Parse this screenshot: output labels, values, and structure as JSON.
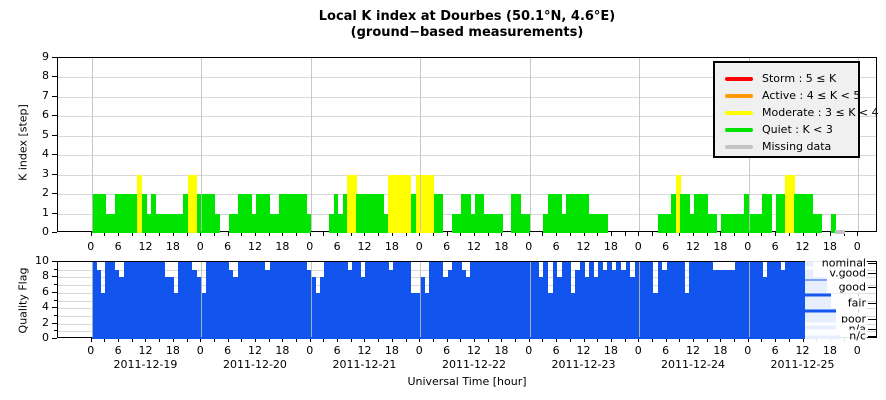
{
  "title": {
    "line1": "Local K index at Dourbes (50.1°N, 4.6°E)",
    "line2": "(ground−based measurements)"
  },
  "axes": {
    "x_title": "Universal Time [hour]",
    "k_axis_label": "K index [step]",
    "quality_axis_label": "Quality Flag",
    "k_ticks": [
      "0",
      "1",
      "2",
      "3",
      "4",
      "5",
      "6",
      "7",
      "8",
      "9"
    ],
    "quality_ticks": [
      "0",
      "2",
      "4",
      "6",
      "8",
      "10"
    ],
    "hour_minor_step": 3,
    "hour_label_step": 6,
    "hours_total": 168
  },
  "dates": [
    "2011-12-19",
    "2011-12-20",
    "2011-12-21",
    "2011-12-22",
    "2011-12-23",
    "2011-12-24",
    "2011-12-25"
  ],
  "legend": {
    "entries": [
      {
        "label": "Storm : 5 ≤ K",
        "color": "#ff0000"
      },
      {
        "label": "Active : 4 ≤ K < 5",
        "color": "#ff9900"
      },
      {
        "label": "Moderate : 3 ≤ K < 4",
        "color": "#ffff00"
      },
      {
        "label": "Quiet : K < 3",
        "color": "#00e400"
      },
      {
        "label": "Missing data",
        "color": "#c4c4c4"
      }
    ]
  },
  "quality_scale_labels": [
    {
      "text": "nominal",
      "value": 9.7
    },
    {
      "text": "v.good",
      "value": 8.4
    },
    {
      "text": "good",
      "value": 6.6
    },
    {
      "text": "fair",
      "value": 4.6
    },
    {
      "text": "poor",
      "value": 2.5
    },
    {
      "text": "n/a",
      "value": 1.2
    },
    {
      "text": "n/c",
      "value": 0.25
    }
  ],
  "colors": {
    "quiet": "#00e400",
    "moderate": "#ffff00",
    "active": "#ff9900",
    "storm": "#ff0000",
    "missing": "#c4c4c4",
    "quality_bar": "#1155ee",
    "grid": "#d9d9d9"
  },
  "chart_data": [
    {
      "type": "bar",
      "title": "Local K index at Dourbes (hourly K, color-coded by activity level)",
      "ylabel": "K index [step]",
      "ylim": [
        0,
        9
      ],
      "x_unit": "hour",
      "categories_note": "7 days x 24 hourly K values, 2011-12-19 .. 2011-12-25",
      "series": [
        {
          "date": "2011-12-19",
          "values": [
            2,
            2,
            2,
            1,
            1,
            2,
            2,
            2,
            2,
            2,
            3,
            2,
            1,
            2,
            1,
            1,
            1,
            1,
            1,
            1,
            2,
            3,
            3,
            2
          ]
        },
        {
          "date": "2011-12-20",
          "values": [
            2,
            2,
            2,
            1,
            0,
            0,
            1,
            1,
            2,
            2,
            2,
            1,
            2,
            2,
            2,
            1,
            1,
            2,
            2,
            2,
            2,
            2,
            2,
            1
          ]
        },
        {
          "date": "2011-12-21",
          "values": [
            0,
            0,
            0,
            0,
            1,
            2,
            1,
            2,
            3,
            3,
            2,
            2,
            2,
            2,
            2,
            2,
            1,
            3,
            3,
            3,
            3,
            3,
            2,
            3
          ]
        },
        {
          "date": "2011-12-22",
          "values": [
            3,
            3,
            3,
            2,
            2,
            0,
            0,
            1,
            1,
            2,
            2,
            1,
            2,
            2,
            1,
            1,
            1,
            1,
            0,
            0,
            2,
            2,
            1,
            1
          ]
        },
        {
          "date": "2011-12-23",
          "values": [
            0,
            0,
            0,
            1,
            2,
            2,
            2,
            1,
            2,
            2,
            2,
            2,
            2,
            1,
            1,
            1,
            1,
            0,
            0,
            0,
            0,
            0,
            0,
            0
          ]
        },
        {
          "date": "2011-12-24",
          "values": [
            0,
            0,
            0,
            0,
            1,
            1,
            1,
            2,
            3,
            2,
            2,
            1,
            2,
            2,
            2,
            1,
            1,
            0,
            1,
            1,
            1,
            1,
            1,
            2
          ]
        },
        {
          "date": "2011-12-25",
          "values": [
            1,
            1,
            1,
            2,
            2,
            0,
            2,
            2,
            3,
            3,
            2,
            2,
            2,
            2,
            1,
            1,
            0,
            0,
            1,
            0,
            0,
            0,
            0,
            0
          ]
        }
      ],
      "missing": [
        {
          "date": "2011-12-25",
          "hours": [
            19,
            20
          ]
        }
      ],
      "color_rule": "K>=5 storm red, 4<=K<5 active orange, 3<=K<4 moderate yellow, 0<K<3 quiet green, K=0 no bar",
      "legend_position": "top-right inside axes",
      "grid": true
    },
    {
      "type": "bar",
      "title": "Quality Flag (hourly)",
      "ylabel": "Quality Flag",
      "ylim": [
        0,
        10
      ],
      "x_unit": "hour",
      "series": [
        {
          "date": "2011-12-19",
          "values": [
            10,
            9,
            6,
            10,
            10,
            9,
            8,
            10,
            10,
            10,
            10,
            10,
            10,
            10,
            10,
            10,
            8,
            8,
            6,
            10,
            10,
            10,
            9,
            8
          ]
        },
        {
          "date": "2011-12-20",
          "values": [
            6,
            10,
            10,
            10,
            10,
            10,
            9,
            8,
            10,
            10,
            10,
            10,
            10,
            10,
            9,
            10,
            10,
            10,
            10,
            10,
            10,
            10,
            10,
            9
          ]
        },
        {
          "date": "2011-12-21",
          "values": [
            8,
            6,
            8,
            10,
            10,
            10,
            10,
            10,
            9,
            10,
            10,
            8,
            10,
            10,
            10,
            10,
            10,
            9,
            10,
            10,
            10,
            10,
            6,
            6
          ]
        },
        {
          "date": "2011-12-22",
          "values": [
            8,
            6,
            10,
            10,
            10,
            8,
            9,
            10,
            10,
            9,
            8,
            10,
            10,
            10,
            10,
            10,
            10,
            10,
            10,
            10,
            10,
            10,
            10,
            10
          ]
        },
        {
          "date": "2011-12-23",
          "values": [
            10,
            10,
            8,
            10,
            6,
            10,
            8,
            10,
            10,
            6,
            9,
            10,
            8,
            10,
            8,
            10,
            9,
            10,
            9,
            10,
            9,
            10,
            8,
            10
          ]
        },
        {
          "date": "2011-12-24",
          "values": [
            10,
            10,
            10,
            6,
            10,
            9,
            10,
            10,
            10,
            10,
            6,
            10,
            10,
            10,
            10,
            10,
            9,
            9,
            9,
            9,
            9,
            10,
            10,
            10
          ]
        },
        {
          "date": "2011-12-25",
          "values": [
            10,
            10,
            10,
            8,
            10,
            10,
            10,
            9,
            10,
            10,
            10,
            10,
            10,
            10,
            8,
            8,
            8,
            6,
            4,
            1,
            0,
            0,
            0,
            0
          ]
        }
      ],
      "right_axis_labels": [
        "nominal",
        "v.good",
        "good",
        "fair",
        "poor",
        "n/a",
        "n/c"
      ],
      "grid": true
    }
  ]
}
